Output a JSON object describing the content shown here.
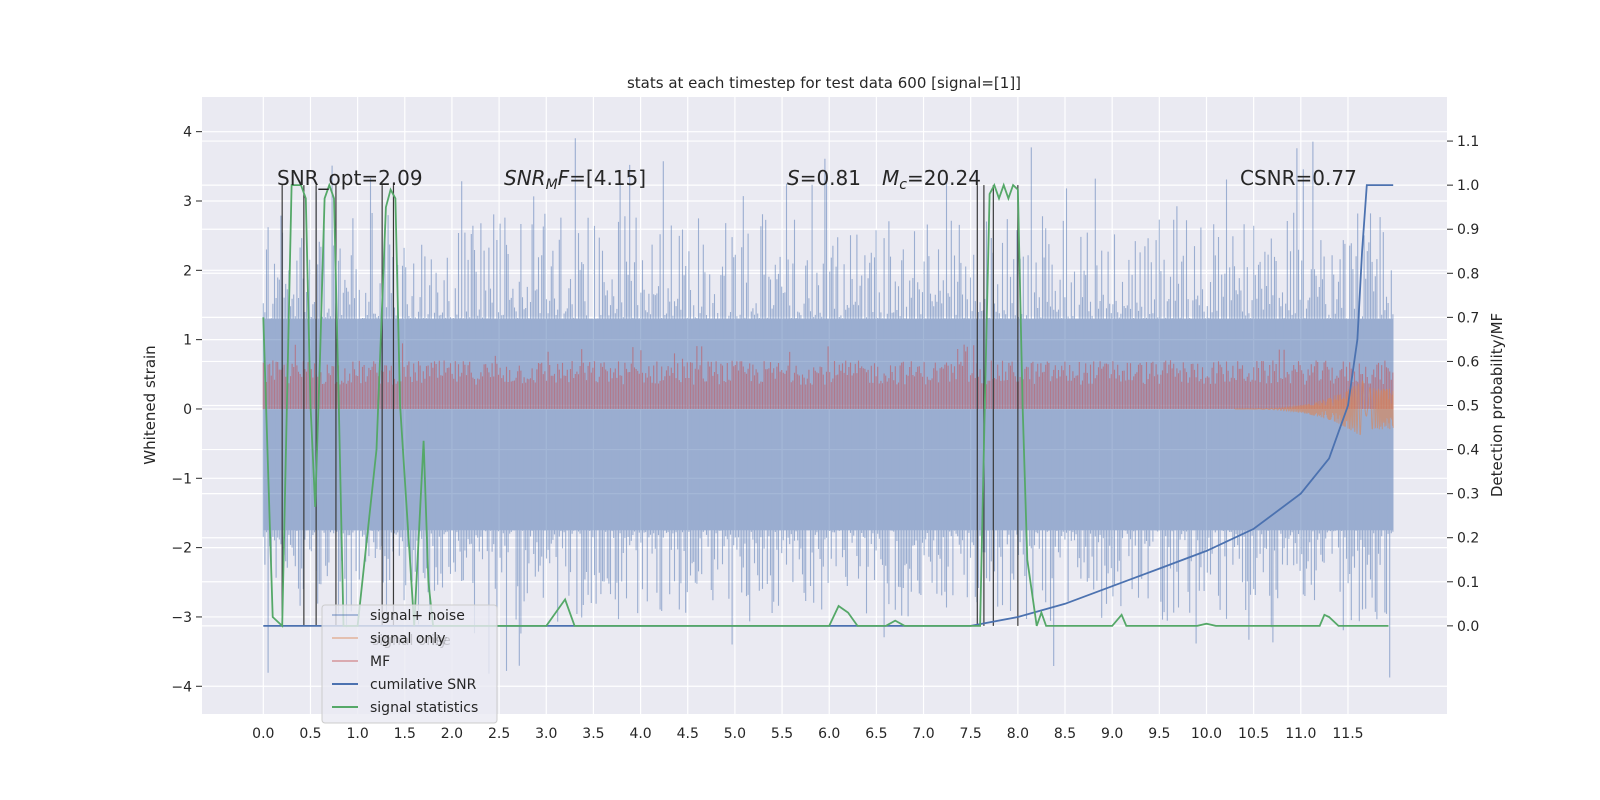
{
  "chart_data": {
    "type": "line",
    "title": "stats at each timestep for test data 600 [signal=[1]]",
    "xlabel": "",
    "ylabel_left": "Whitened strain",
    "ylabel_right": "Detection probability/MF",
    "xlim": [
      -0.65,
      12.55
    ],
    "ylim_left": [
      -4.4,
      4.5
    ],
    "ylim_right": [
      -0.2,
      1.2
    ],
    "xticks": [
      0.0,
      0.5,
      1.0,
      1.5,
      2.0,
      2.5,
      3.0,
      3.5,
      4.0,
      4.5,
      5.0,
      5.5,
      6.0,
      6.5,
      7.0,
      7.5,
      8.0,
      8.5,
      9.0,
      9.5,
      10.0,
      10.5,
      11.0,
      11.5
    ],
    "xtick_labels": [
      "0.0",
      "0.5",
      "1.0",
      "1.5",
      "2.0",
      "2.5",
      "3.0",
      "3.5",
      "4.0",
      "4.5",
      "5.0",
      "5.5",
      "6.0",
      "6.5",
      "7.0",
      "7.5",
      "8.0",
      "8.5",
      "9.0",
      "9.5",
      "10.0",
      "10.5",
      "11.0",
      "11.5"
    ],
    "yticks_left": [
      -4,
      -3,
      -2,
      -1,
      0,
      1,
      2,
      3,
      4
    ],
    "ytick_labels_left": [
      "−4",
      "−3",
      "−2",
      "−1",
      "0",
      "1",
      "2",
      "3",
      "4"
    ],
    "yticks_right": [
      0.0,
      0.1,
      0.2,
      0.3,
      0.4,
      0.5,
      0.6,
      0.7,
      0.8,
      0.9,
      1.0,
      1.1
    ],
    "ytick_labels_right": [
      "0.0",
      "0.1",
      "0.2",
      "0.3",
      "0.4",
      "0.5",
      "0.6",
      "0.7",
      "0.8",
      "0.9",
      "1.0",
      "1.1"
    ],
    "grid": true,
    "legend_position": "lower-left",
    "annotations": {
      "snr_opt": "SNR_opt=2.09",
      "snr_mf_sym": "SNR",
      "snr_mf_sub": "M",
      "snr_mf_rest": "F=[4.15]",
      "s_sym": "S",
      "s_rest": "=0.81",
      "mc_sym": "M",
      "mc_sub": "c",
      "mc_rest": "=20.24",
      "csnr": "CSNR=0.77"
    },
    "series": [
      {
        "name": "signal+ noise",
        "label_drawn": "signal+ noise",
        "color": "#4c72b0",
        "description_axis": "left",
        "envelope": {
          "x_range": [
            0.0,
            11.98
          ],
          "band_low": -1.75,
          "band_high": 1.3,
          "spike_max": 4.1,
          "spike_min": -3.95
        }
      },
      {
        "name": "signal only",
        "label_drawn": "signal only",
        "color": "#dd8452",
        "description_axis": "left",
        "chirp": {
          "x_range": [
            0.0,
            11.98
          ],
          "peak_x": 11.7,
          "min_y": -0.45
        }
      },
      {
        "name": "MF",
        "label_drawn": "MF",
        "color": "#c44e52",
        "description_axis": "left",
        "band": {
          "x_range": [
            0.0,
            11.98
          ],
          "low": 0.0,
          "high": 0.75
        }
      },
      {
        "name": "cumilative SNR",
        "label_drawn": "cumilative SNR",
        "color": "#4c72b0",
        "description_axis": "right",
        "x": [
          0.0,
          7.5,
          8.0,
          8.5,
          9.0,
          9.5,
          10.0,
          10.5,
          11.0,
          11.3,
          11.5,
          11.6,
          11.65,
          11.7,
          11.98
        ],
        "y": [
          0.0,
          0.0,
          0.02,
          0.05,
          0.09,
          0.13,
          0.17,
          0.22,
          0.3,
          0.38,
          0.5,
          0.65,
          0.85,
          1.0,
          1.0
        ]
      },
      {
        "name": "signal statistics",
        "label_drawn": "signal statistics",
        "color": "#55a868",
        "description_axis": "right",
        "x": [
          0.0,
          0.1,
          0.2,
          0.25,
          0.3,
          0.4,
          0.45,
          0.5,
          0.55,
          0.6,
          0.65,
          0.7,
          0.75,
          0.8,
          0.85,
          1.0,
          1.2,
          1.3,
          1.35,
          1.4,
          1.45,
          1.6,
          1.7,
          1.75,
          1.8,
          2.0,
          3.0,
          3.2,
          3.25,
          3.3,
          3.5,
          5.8,
          6.0,
          6.1,
          6.2,
          6.3,
          6.6,
          6.7,
          6.8,
          7.6,
          7.65,
          7.7,
          7.75,
          7.8,
          7.85,
          7.9,
          7.95,
          8.0,
          8.05,
          8.1,
          8.2,
          8.25,
          8.3,
          8.4,
          8.5,
          9.0,
          9.1,
          9.15,
          9.25,
          9.5,
          9.9,
          10.0,
          10.1,
          10.5,
          11.0,
          11.2,
          11.25,
          11.3,
          11.4,
          11.93
        ],
        "y": [
          0.7,
          0.02,
          0.0,
          0.5,
          1.0,
          1.0,
          0.97,
          0.5,
          0.27,
          0.6,
          0.97,
          1.0,
          0.97,
          0.5,
          0.0,
          0.0,
          0.4,
          0.95,
          0.99,
          0.97,
          0.5,
          0.0,
          0.42,
          0.1,
          0.0,
          0.0,
          0.0,
          0.06,
          0.03,
          0.0,
          0.0,
          0.0,
          0.0,
          0.045,
          0.03,
          0.0,
          0.0,
          0.012,
          0.0,
          0.0,
          0.5,
          0.98,
          1.0,
          0.97,
          1.0,
          0.97,
          1.0,
          0.99,
          0.5,
          0.15,
          0.0,
          0.03,
          0.0,
          0.0,
          0.0,
          0.0,
          0.025,
          0.0,
          0.0,
          0.0,
          0.0,
          0.005,
          0.0,
          0.0,
          0.0,
          0.0,
          0.025,
          0.02,
          0.0,
          0.0
        ]
      }
    ],
    "vertical_lines_x": [
      0.2,
      0.43,
      0.56,
      0.77,
      1.26,
      1.38,
      7.57,
      7.64,
      7.74,
      8.0
    ],
    "vertical_lines_color": "#3a3a3a"
  },
  "legend": {
    "items": [
      {
        "label": "signal+ noise",
        "color": "#4c72b0",
        "faded": true
      },
      {
        "label": "signal only",
        "color": "#dd8452",
        "faded": true
      },
      {
        "label": "MF",
        "color": "#c44e52",
        "faded": true
      },
      {
        "label": "cumilative SNR",
        "color": "#4c72b0",
        "faded": false
      },
      {
        "label": "signal statistics",
        "color": "#55a868",
        "faded": false
      }
    ]
  },
  "colors": {
    "plot_bg": "#eaeaf2",
    "grid": "#ffffff",
    "legend_bg": "#eaeaf2"
  }
}
